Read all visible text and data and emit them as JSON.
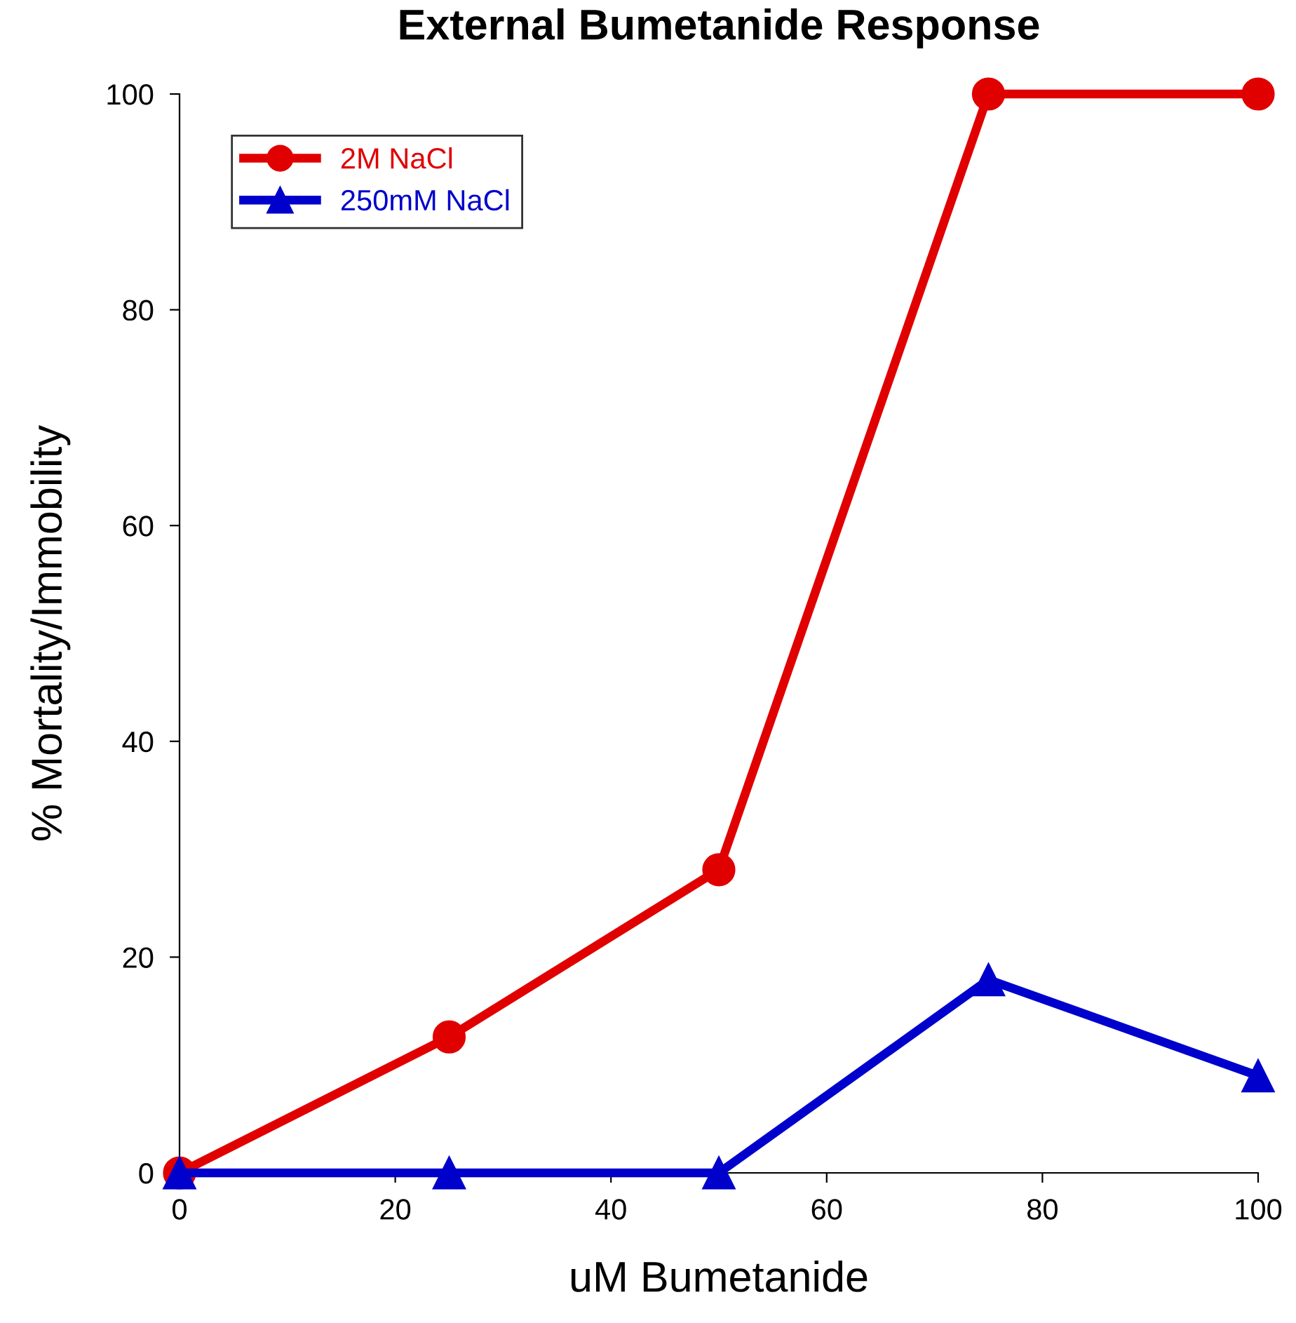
{
  "chart_data": {
    "type": "line",
    "title": "External Bumetanide Response",
    "xlabel": "uM Bumetanide",
    "ylabel": "% Mortality/Immobility",
    "x": [
      0,
      25,
      50,
      75,
      100
    ],
    "series": [
      {
        "name": "2M NaCl",
        "color": "#e00000",
        "values": [
          0,
          12.6,
          28.1,
          100,
          100
        ],
        "marker": "circle"
      },
      {
        "name": "250mM NaCl",
        "color": "#0000cc",
        "values": [
          0,
          0,
          0,
          17.9,
          9.0
        ],
        "marker": "triangle"
      }
    ],
    "xlim": [
      0,
      100
    ],
    "ylim": [
      0,
      100
    ],
    "xticks": [
      0,
      20,
      40,
      60,
      80,
      100
    ],
    "yticks": [
      0,
      20,
      40,
      60,
      80,
      100
    ],
    "grid": false,
    "legend": "top left",
    "line_style": "solid"
  }
}
